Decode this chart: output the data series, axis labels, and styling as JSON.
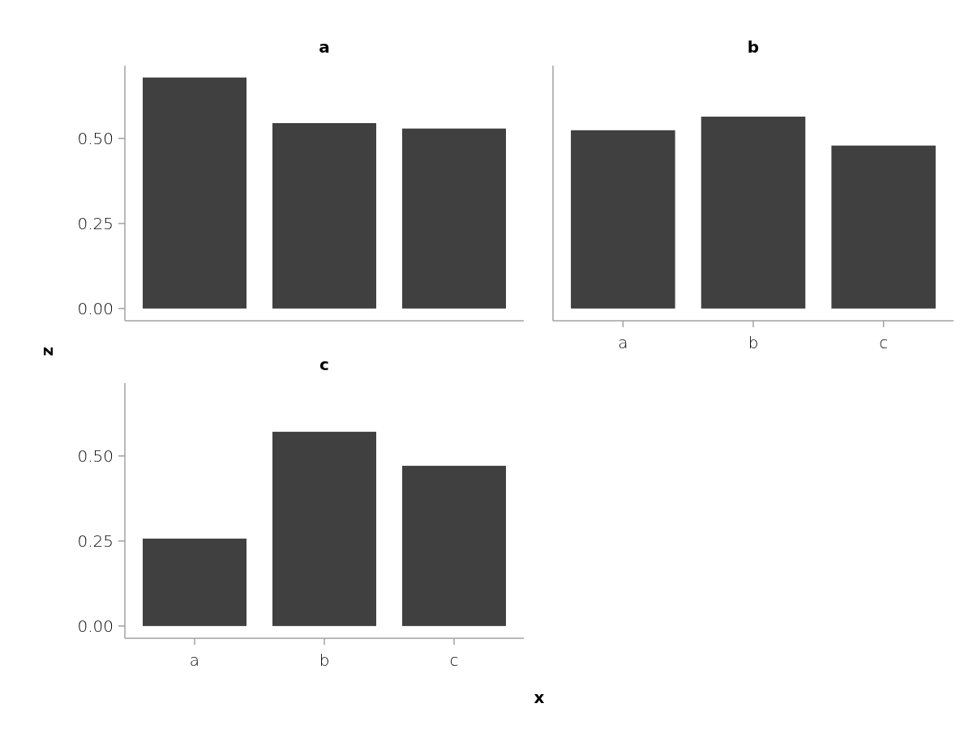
{
  "chart_data": [
    {
      "type": "bar",
      "title": "a",
      "xlabel": "x",
      "ylabel": "z",
      "categories": [
        null,
        null,
        null
      ],
      "values": [
        0.679,
        0.545,
        0.529
      ],
      "color": "#404040",
      "ylim": [
        -0.036,
        0.714
      ],
      "yticks": [
        {
          "value": 0,
          "label": "0.00"
        },
        {
          "value": 0.25,
          "label": "0.25"
        },
        {
          "value": 0.5,
          "label": "0.50"
        }
      ],
      "tick_labels": "y"
    },
    {
      "type": "bar",
      "title": "b",
      "categories": [
        "a",
        "b",
        "c"
      ],
      "values": [
        0.524,
        0.564,
        0.479
      ],
      "color": "#404040",
      "ylim": [
        -0.036,
        0.714
      ],
      "tick_labels": "x"
    },
    {
      "type": "bar",
      "title": "c",
      "categories": [
        "a",
        "b",
        "c"
      ],
      "values": [
        0.257,
        0.571,
        0.471
      ],
      "color": "#404040",
      "ylim": [
        -0.036,
        0.714
      ],
      "yticks": [
        {
          "value": 0,
          "label": "0.00"
        },
        {
          "value": 0.25,
          "label": "0.25"
        },
        {
          "value": 0.5,
          "label": "0.50"
        }
      ]
    }
  ]
}
